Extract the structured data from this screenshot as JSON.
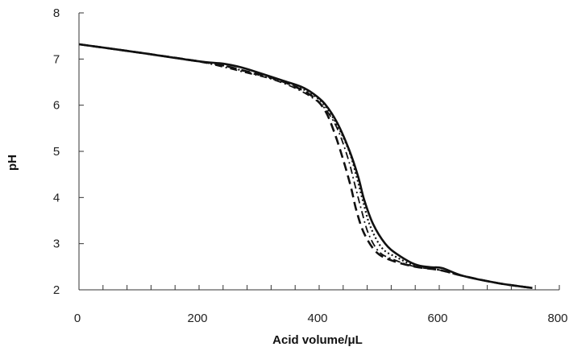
{
  "chart_data": {
    "type": "line",
    "title": "",
    "xlabel": "Acid volume/μL",
    "ylabel": "pH",
    "xlim": [
      0,
      800
    ],
    "ylim": [
      2,
      8
    ],
    "x_ticks": [
      0,
      200,
      400,
      600,
      800
    ],
    "x_tick_labels": [
      "0",
      "200",
      "400",
      "600",
      "800"
    ],
    "y_ticks": [
      2,
      3,
      4,
      5,
      6,
      7,
      8
    ],
    "y_tick_labels": [
      "2",
      "3",
      "4",
      "5",
      "6",
      "7",
      "8"
    ],
    "x_minor_step": 40,
    "grid": false,
    "legend": "none",
    "series": [
      {
        "style": "solid",
        "color": "#111111",
        "points": [
          [
            0,
            7.32
          ],
          [
            100,
            7.14
          ],
          [
            200,
            6.95
          ],
          [
            240,
            6.9
          ],
          [
            270,
            6.82
          ],
          [
            300,
            6.7
          ],
          [
            340,
            6.53
          ],
          [
            370,
            6.4
          ],
          [
            390,
            6.25
          ],
          [
            410,
            6.02
          ],
          [
            430,
            5.62
          ],
          [
            450,
            5.03
          ],
          [
            465,
            4.45
          ],
          [
            475,
            3.95
          ],
          [
            490,
            3.42
          ],
          [
            510,
            3.0
          ],
          [
            530,
            2.77
          ],
          [
            560,
            2.55
          ],
          [
            585,
            2.49
          ],
          [
            605,
            2.47
          ],
          [
            640,
            2.3
          ],
          [
            700,
            2.14
          ],
          [
            755,
            2.04
          ]
        ]
      },
      {
        "style": "dashed",
        "color": "#111111",
        "points": [
          [
            0,
            7.32
          ],
          [
            100,
            7.14
          ],
          [
            200,
            6.95
          ],
          [
            240,
            6.86
          ],
          [
            280,
            6.73
          ],
          [
            320,
            6.6
          ],
          [
            360,
            6.4
          ],
          [
            390,
            6.18
          ],
          [
            410,
            5.88
          ],
          [
            425,
            5.42
          ],
          [
            440,
            4.82
          ],
          [
            453,
            4.22
          ],
          [
            462,
            3.72
          ],
          [
            475,
            3.22
          ],
          [
            495,
            2.82
          ],
          [
            520,
            2.64
          ],
          [
            560,
            2.5
          ],
          [
            600,
            2.43
          ],
          [
            640,
            2.3
          ],
          [
            700,
            2.14
          ],
          [
            755,
            2.04
          ]
        ]
      },
      {
        "style": "dotted",
        "color": "#111111",
        "points": [
          [
            0,
            7.32
          ],
          [
            100,
            7.14
          ],
          [
            200,
            6.95
          ],
          [
            240,
            6.86
          ],
          [
            280,
            6.72
          ],
          [
            320,
            6.58
          ],
          [
            360,
            6.42
          ],
          [
            390,
            6.22
          ],
          [
            410,
            5.98
          ],
          [
            430,
            5.57
          ],
          [
            450,
            5.0
          ],
          [
            463,
            4.42
          ],
          [
            473,
            3.92
          ],
          [
            485,
            3.38
          ],
          [
            505,
            2.9
          ],
          [
            530,
            2.7
          ],
          [
            560,
            2.52
          ],
          [
            600,
            2.43
          ],
          [
            640,
            2.3
          ],
          [
            700,
            2.14
          ],
          [
            755,
            2.04
          ]
        ]
      },
      {
        "style": "dash-dot",
        "color": "#111111",
        "points": [
          [
            0,
            7.32
          ],
          [
            100,
            7.14
          ],
          [
            200,
            6.94
          ],
          [
            240,
            6.83
          ],
          [
            280,
            6.7
          ],
          [
            320,
            6.57
          ],
          [
            360,
            6.37
          ],
          [
            390,
            6.15
          ],
          [
            410,
            5.92
          ],
          [
            430,
            5.5
          ],
          [
            448,
            4.85
          ],
          [
            460,
            4.25
          ],
          [
            470,
            3.75
          ],
          [
            482,
            3.22
          ],
          [
            500,
            2.82
          ],
          [
            525,
            2.65
          ],
          [
            560,
            2.5
          ],
          [
            600,
            2.43
          ],
          [
            640,
            2.3
          ],
          [
            700,
            2.14
          ],
          [
            755,
            2.04
          ]
        ]
      }
    ]
  }
}
